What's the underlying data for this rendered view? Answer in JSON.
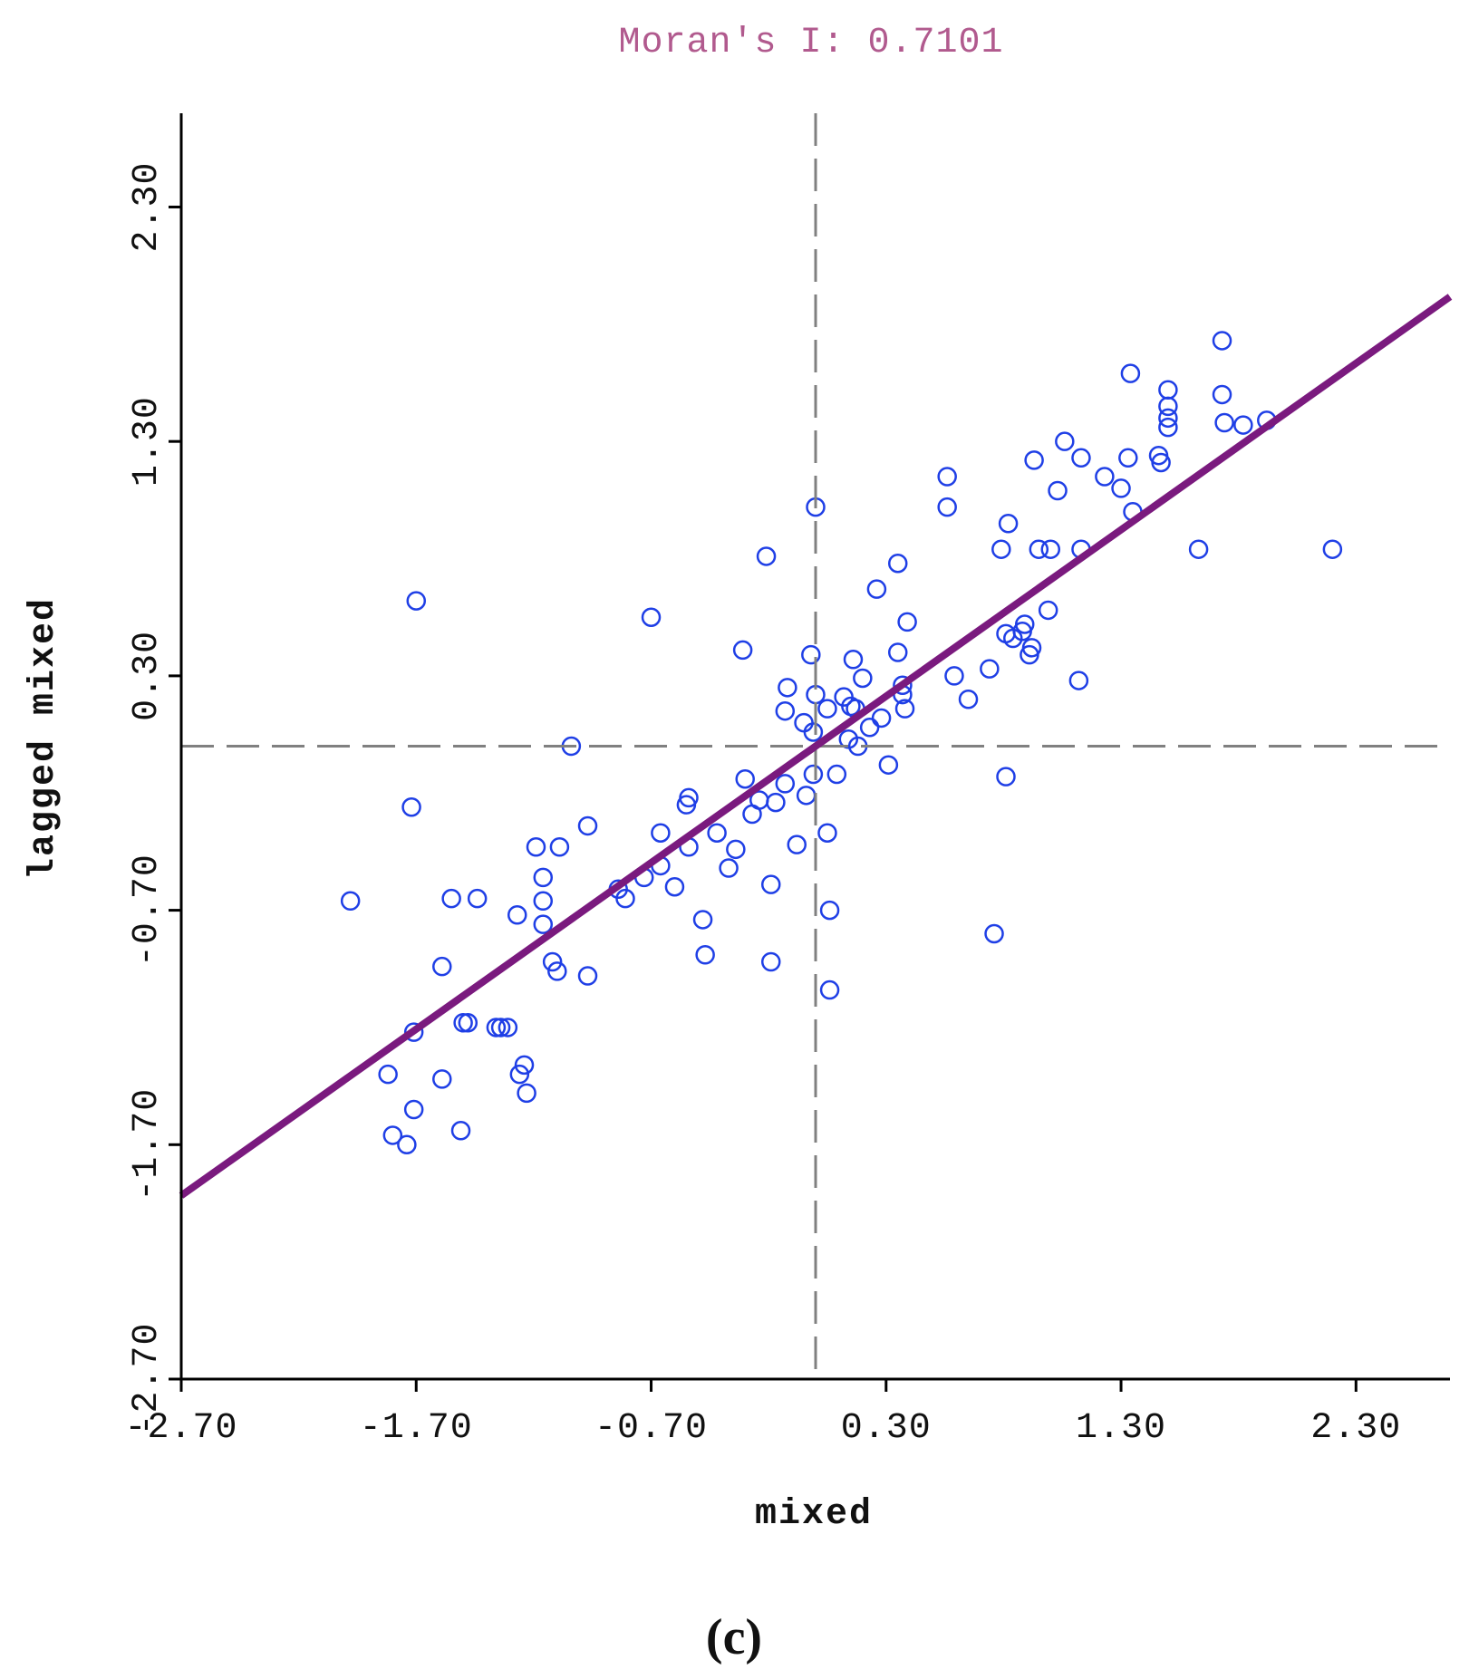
{
  "chart_data": {
    "type": "scatter",
    "title": "Moran's I: 0.7101",
    "moran_i": 0.7101,
    "xlabel": "mixed",
    "ylabel": "lagged mixed",
    "panel_label": "(c)",
    "xlim": [
      -2.7,
      2.7
    ],
    "ylim": [
      -2.7,
      2.7
    ],
    "x_ticks": [
      -2.7,
      -1.7,
      -0.7,
      0.3,
      1.3,
      2.3
    ],
    "y_ticks": [
      -2.7,
      -1.7,
      -0.7,
      0.3,
      1.3,
      2.3
    ],
    "x_tick_labels": [
      "-2.70",
      "-1.70",
      "-0.70",
      "0.30",
      "1.30",
      "2.30"
    ],
    "y_tick_labels": [
      "-2.70",
      "-1.70",
      "-0.70",
      "0.30",
      "1.30",
      "2.30"
    ],
    "reference_lines": {
      "x_mean": 0.0,
      "y_mean": 0.0
    },
    "regression_line": {
      "slope": 0.7101,
      "intercept": 0.0
    },
    "points": [
      [
        -1.98,
        -0.66
      ],
      [
        -1.72,
        -0.26
      ],
      [
        -1.7,
        0.62
      ],
      [
        -1.82,
        -1.4
      ],
      [
        -1.8,
        -1.66
      ],
      [
        -1.74,
        -1.7
      ],
      [
        -1.71,
        -1.55
      ],
      [
        -1.71,
        -1.22
      ],
      [
        -1.59,
        -1.42
      ],
      [
        -1.59,
        -0.94
      ],
      [
        -1.55,
        -0.65
      ],
      [
        -1.51,
        -1.64
      ],
      [
        -1.5,
        -1.18
      ],
      [
        -1.48,
        -1.18
      ],
      [
        -1.44,
        -0.65
      ],
      [
        -1.36,
        -1.2
      ],
      [
        -1.34,
        -1.2
      ],
      [
        -1.31,
        -1.2
      ],
      [
        -1.27,
        -0.72
      ],
      [
        -1.26,
        -1.4
      ],
      [
        -1.24,
        -1.36
      ],
      [
        -1.23,
        -1.48
      ],
      [
        -1.19,
        -0.43
      ],
      [
        -1.16,
        -0.56
      ],
      [
        -1.16,
        -0.76
      ],
      [
        -1.16,
        -0.66
      ],
      [
        -1.12,
        -0.92
      ],
      [
        -1.1,
        -0.96
      ],
      [
        -1.09,
        -0.43
      ],
      [
        -1.04,
        0.0
      ],
      [
        -0.97,
        -0.34
      ],
      [
        -0.97,
        -0.98
      ],
      [
        -0.84,
        -0.61
      ],
      [
        -0.81,
        -0.65
      ],
      [
        -0.7,
        0.55
      ],
      [
        -0.73,
        -0.56
      ],
      [
        -0.66,
        -0.51
      ],
      [
        -0.66,
        -0.37
      ],
      [
        -0.6,
        -0.6
      ],
      [
        -0.55,
        -0.25
      ],
      [
        -0.54,
        -0.22
      ],
      [
        -0.54,
        -0.43
      ],
      [
        -0.48,
        -0.74
      ],
      [
        -0.47,
        -0.89
      ],
      [
        -0.42,
        -0.37
      ],
      [
        -0.37,
        -0.52
      ],
      [
        -0.34,
        -0.44
      ],
      [
        -0.31,
        0.41
      ],
      [
        -0.3,
        -0.14
      ],
      [
        -0.27,
        -0.29
      ],
      [
        -0.24,
        -0.23
      ],
      [
        -0.21,
        0.81
      ],
      [
        -0.19,
        -0.59
      ],
      [
        -0.19,
        -0.92
      ],
      [
        -0.17,
        -0.24
      ],
      [
        -0.13,
        -0.16
      ],
      [
        -0.13,
        0.15
      ],
      [
        -0.12,
        0.25
      ],
      [
        -0.08,
        -0.42
      ],
      [
        -0.05,
        0.1
      ],
      [
        -0.04,
        -0.21
      ],
      [
        -0.02,
        0.39
      ],
      [
        -0.01,
        -0.12
      ],
      [
        -0.01,
        0.06
      ],
      [
        0.0,
        1.02
      ],
      [
        0.0,
        0.22
      ],
      [
        0.05,
        -0.37
      ],
      [
        0.05,
        0.16
      ],
      [
        0.06,
        -1.04
      ],
      [
        0.06,
        -0.7
      ],
      [
        0.09,
        -0.12
      ],
      [
        0.12,
        0.21
      ],
      [
        0.14,
        0.03
      ],
      [
        0.15,
        0.17
      ],
      [
        0.16,
        0.37
      ],
      [
        0.17,
        0.16
      ],
      [
        0.18,
        0.0
      ],
      [
        0.2,
        0.29
      ],
      [
        0.23,
        0.08
      ],
      [
        0.26,
        0.67
      ],
      [
        0.28,
        0.12
      ],
      [
        0.31,
        -0.08
      ],
      [
        0.35,
        0.78
      ],
      [
        0.35,
        0.4
      ],
      [
        0.37,
        0.26
      ],
      [
        0.37,
        0.22
      ],
      [
        0.38,
        0.16
      ],
      [
        0.39,
        0.53
      ],
      [
        0.56,
        1.15
      ],
      [
        0.56,
        1.02
      ],
      [
        0.59,
        0.3
      ],
      [
        0.65,
        0.2
      ],
      [
        0.74,
        0.33
      ],
      [
        0.76,
        -0.8
      ],
      [
        0.79,
        0.84
      ],
      [
        0.81,
        0.48
      ],
      [
        0.81,
        -0.13
      ],
      [
        0.82,
        0.95
      ],
      [
        0.84,
        0.46
      ],
      [
        0.88,
        0.49
      ],
      [
        0.89,
        0.52
      ],
      [
        0.91,
        0.39
      ],
      [
        0.92,
        0.42
      ],
      [
        0.93,
        1.22
      ],
      [
        0.95,
        0.84
      ],
      [
        0.99,
        0.58
      ],
      [
        1.0,
        0.84
      ],
      [
        1.03,
        1.09
      ],
      [
        1.06,
        1.3
      ],
      [
        1.12,
        0.28
      ],
      [
        1.13,
        1.23
      ],
      [
        1.13,
        0.84
      ],
      [
        1.23,
        1.15
      ],
      [
        1.3,
        1.1
      ],
      [
        1.34,
        1.59
      ],
      [
        1.33,
        1.23
      ],
      [
        1.35,
        1.0
      ],
      [
        1.46,
        1.24
      ],
      [
        1.47,
        1.21
      ],
      [
        1.5,
        1.52
      ],
      [
        1.5,
        1.45
      ],
      [
        1.5,
        1.4
      ],
      [
        1.5,
        1.36
      ],
      [
        1.63,
        0.84
      ],
      [
        1.73,
        1.73
      ],
      [
        1.73,
        1.5
      ],
      [
        1.74,
        1.38
      ],
      [
        1.82,
        1.37
      ],
      [
        1.92,
        1.39
      ],
      [
        2.2,
        0.84
      ]
    ]
  }
}
